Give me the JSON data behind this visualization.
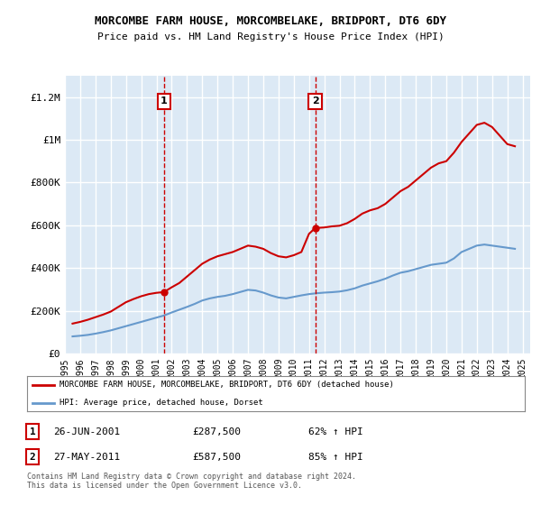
{
  "title": "MORCOMBE FARM HOUSE, MORCOMBELAKE, BRIDPORT, DT6 6DY",
  "subtitle": "Price paid vs. HM Land Registry's House Price Index (HPI)",
  "ylabel_ticks": [
    0,
    200000,
    400000,
    600000,
    800000,
    1000000,
    1200000
  ],
  "ylabel_labels": [
    "£0",
    "£200K",
    "£400K",
    "£600K",
    "£800K",
    "£1M",
    "£1.2M"
  ],
  "ylim": [
    0,
    1300000
  ],
  "xlim_start": 1995.0,
  "xlim_end": 2025.5,
  "background_color": "#dce9f5",
  "plot_bg_color": "#dce9f5",
  "grid_color": "#ffffff",
  "red_color": "#cc0000",
  "blue_color": "#6699cc",
  "sale1_year": 2001.49,
  "sale1_price": 287500,
  "sale2_year": 2011.41,
  "sale2_price": 587500,
  "legend_line1": "MORCOMBE FARM HOUSE, MORCOMBELAKE, BRIDPORT, DT6 6DY (detached house)",
  "legend_line2": "HPI: Average price, detached house, Dorset",
  "table_row1": [
    "1",
    "26-JUN-2001",
    "£287,500",
    "62% ↑ HPI"
  ],
  "table_row2": [
    "2",
    "27-MAY-2011",
    "£587,500",
    "85% ↑ HPI"
  ],
  "footnote": "Contains HM Land Registry data © Crown copyright and database right 2024.\nThis data is licensed under the Open Government Licence v3.0.",
  "xtick_years": [
    1995,
    1996,
    1997,
    1998,
    1999,
    2000,
    2001,
    2002,
    2003,
    2004,
    2005,
    2006,
    2007,
    2008,
    2009,
    2010,
    2011,
    2012,
    2013,
    2014,
    2015,
    2016,
    2017,
    2018,
    2019,
    2020,
    2021,
    2022,
    2023,
    2024,
    2025
  ]
}
